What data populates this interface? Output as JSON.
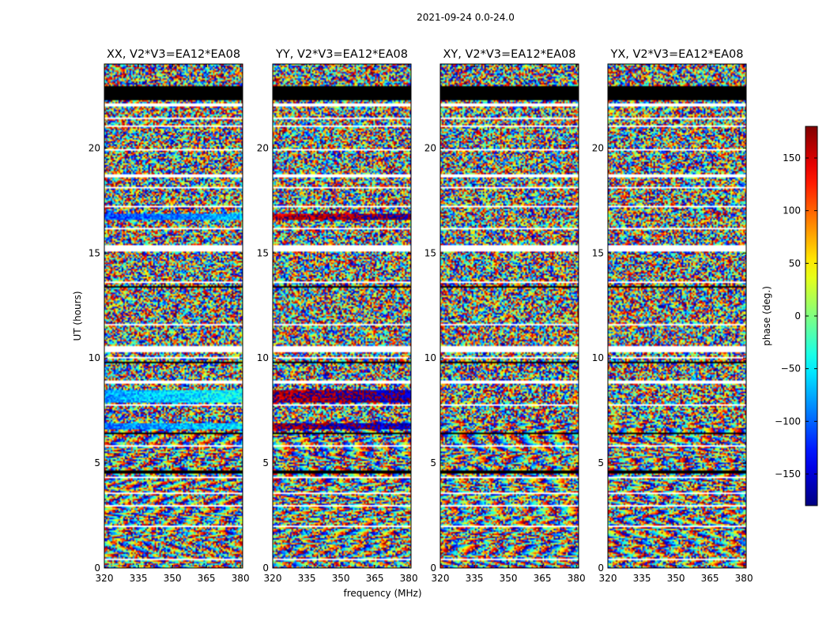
{
  "figure": {
    "suptitle": "2021-09-24 0.0-24.0",
    "xlabel": "frequency (MHz)",
    "ylabel": "UT (hours)"
  },
  "colorbar": {
    "label": "phase (deg.)",
    "ticks": [
      150,
      100,
      50,
      0,
      -50,
      -100,
      -150
    ],
    "tick_labels": [
      "150",
      "100",
      "50",
      "0",
      "−50",
      "−100",
      "−150"
    ],
    "range": [
      -180,
      180
    ],
    "colormap": "jet"
  },
  "chart_data": {
    "type": "heatmap",
    "title": "2021-09-24 0.0-24.0",
    "xlabel": "frequency (MHz)",
    "ylabel": "UT (hours)",
    "xlim": [
      320,
      381
    ],
    "ylim": [
      0,
      24
    ],
    "x_ticks": [
      320,
      335,
      350,
      365,
      380
    ],
    "x_tick_labels": [
      "320",
      "335",
      "350",
      "365",
      "380"
    ],
    "y_ticks": [
      0,
      5,
      10,
      15,
      20
    ],
    "y_tick_labels": [
      "0",
      "5",
      "10",
      "15",
      "20"
    ],
    "value_label": "phase (deg.)",
    "value_range": [
      -180,
      180
    ],
    "panels": [
      {
        "id": "xx",
        "title": "XX, V2*V3=EA12*EA08"
      },
      {
        "id": "yy",
        "title": "YY, V2*V3=EA12*EA08"
      },
      {
        "id": "xy",
        "title": "XY, V2*V3=EA12*EA08"
      },
      {
        "id": "yx",
        "title": "YX, V2*V3=EA12*EA08"
      }
    ],
    "flagged_hours": [
      [
        0.35,
        0.42
      ],
      [
        1.95,
        2.05
      ],
      [
        2.9,
        2.98
      ],
      [
        3.55,
        3.62
      ],
      [
        4.3,
        4.36
      ],
      [
        5.75,
        5.83
      ],
      [
        7.7,
        7.78
      ],
      [
        8.8,
        8.9
      ],
      [
        9.95,
        10.05
      ],
      [
        10.3,
        10.55
      ],
      [
        11.55,
        11.62
      ],
      [
        13.55,
        13.62
      ],
      [
        15.05,
        15.35
      ],
      [
        16.1,
        16.18
      ],
      [
        17.2,
        17.28
      ],
      [
        18.1,
        18.18
      ],
      [
        18.6,
        18.75
      ],
      [
        19.9,
        19.98
      ],
      [
        21.0,
        21.07
      ],
      [
        21.35,
        21.45
      ],
      [
        22.0,
        22.15
      ]
    ],
    "black_hours": [
      [
        22.25,
        22.95
      ],
      [
        13.35,
        13.45
      ],
      [
        9.75,
        9.85
      ],
      [
        4.5,
        4.65
      ],
      [
        6.4,
        6.48
      ]
    ],
    "coherent_bands": [
      {
        "panel": "xx",
        "hours": [
          16.6,
          16.85
        ],
        "phase_deg": -110
      },
      {
        "panel": "xx",
        "hours": [
          7.9,
          8.5
        ],
        "phase_deg": -80
      },
      {
        "panel": "xx",
        "hours": [
          6.6,
          6.9
        ],
        "phase_deg": -95
      },
      {
        "panel": "yy",
        "hours": [
          16.6,
          16.85
        ],
        "phase_deg": 150
      },
      {
        "panel": "yy",
        "hours": [
          7.9,
          8.5
        ],
        "phase_deg": 160
      },
      {
        "panel": "yy",
        "hours": [
          6.6,
          6.9
        ],
        "phase_deg": 170
      }
    ]
  }
}
